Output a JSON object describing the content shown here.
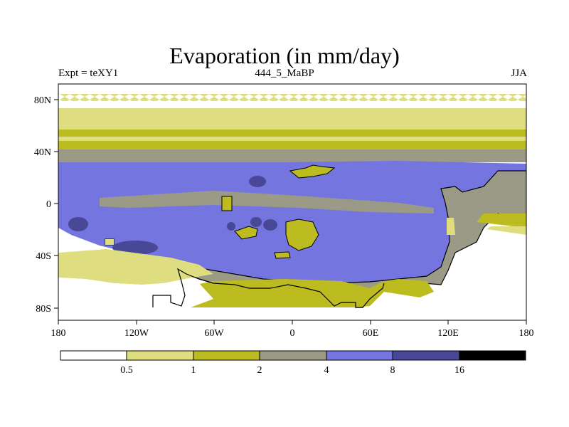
{
  "title": "Evaporation (in mm/day)",
  "left_label": "Expt = teXY1",
  "center_label": "444_5_MaBP",
  "right_label": "JJA",
  "map": {
    "lat_ticks": [
      "80N",
      "40N",
      "0",
      "40S",
      "80S"
    ],
    "lon_ticks": [
      "180",
      "120W",
      "60W",
      "0",
      "60E",
      "120E",
      "180"
    ],
    "colors": {
      "lt0_5": "#ffffff",
      "c0_5_1": "#dede80",
      "c1_2": "#bcbc20",
      "c2_4": "#9a9a86",
      "c4_8": "#7575e0",
      "c8_16": "#484896",
      "gt16": "#000000"
    }
  },
  "colorbar": {
    "labels": [
      "0.5",
      "1",
      "2",
      "4",
      "8",
      "16"
    ],
    "bins": [
      {
        "color": "#ffffff"
      },
      {
        "color": "#dede80"
      },
      {
        "color": "#bcbc20"
      },
      {
        "color": "#9a9a86"
      },
      {
        "color": "#7575e0"
      },
      {
        "color": "#484896"
      },
      {
        "color": "#000000"
      }
    ]
  }
}
